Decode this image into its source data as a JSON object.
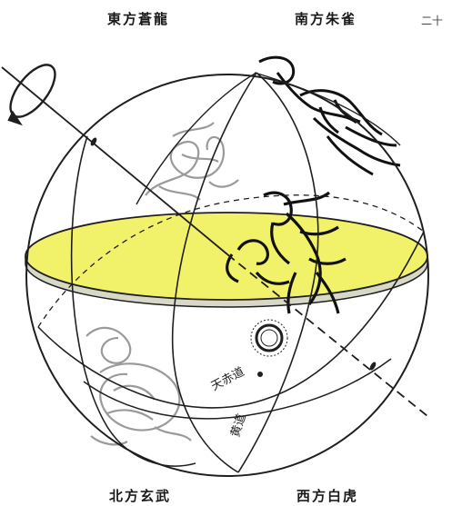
{
  "quadrants": {
    "east": "東方蒼龍",
    "south": "南方朱雀",
    "north": "北方玄武",
    "west": "西方白虎"
  },
  "edge_text": "二十",
  "circle_labels": {
    "celestial_equator": "天赤道",
    "ecliptic": "黄道"
  },
  "colors": {
    "equator_plane": "#f2f26a",
    "line": "#1f1f1f",
    "creature_faint": "#9a9a9a",
    "creature_dark": "#111111"
  }
}
